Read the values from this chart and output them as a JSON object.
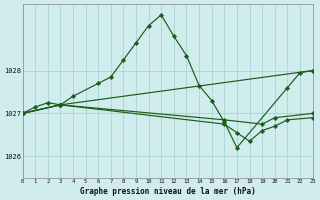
{
  "title": "Graphe pression niveau de la mer (hPa)",
  "bg_color": "#d0ecec",
  "grid_color": "#a8d4d4",
  "line_color": "#1a5c1a",
  "xlim": [
    0,
    23
  ],
  "ylim": [
    1025.5,
    1029.55
  ],
  "yticks": [
    1026,
    1027,
    1028
  ],
  "xticks": [
    0,
    1,
    2,
    3,
    4,
    5,
    6,
    7,
    8,
    9,
    10,
    11,
    12,
    13,
    14,
    15,
    16,
    17,
    18,
    19,
    20,
    21,
    22,
    23
  ],
  "lines": [
    {
      "x": [
        0,
        1,
        2,
        3,
        4,
        6,
        7,
        8,
        9,
        10,
        11,
        12,
        13,
        14,
        15,
        16,
        17,
        21,
        22,
        23
      ],
      "y": [
        1027.0,
        1027.15,
        1027.25,
        1027.2,
        1027.4,
        1027.7,
        1027.85,
        1028.25,
        1028.65,
        1029.05,
        1029.3,
        1028.8,
        1028.35,
        1027.65,
        1027.3,
        1026.8,
        1026.2,
        1027.6,
        1027.95,
        1028.0
      ]
    },
    {
      "x": [
        0,
        3,
        23
      ],
      "y": [
        1027.0,
        1027.2,
        1028.0
      ]
    },
    {
      "x": [
        0,
        3,
        16,
        19,
        20,
        23
      ],
      "y": [
        1027.0,
        1027.2,
        1026.85,
        1026.75,
        1026.9,
        1027.0
      ]
    },
    {
      "x": [
        0,
        3,
        16,
        17,
        18,
        19,
        20,
        21,
        23
      ],
      "y": [
        1027.0,
        1027.2,
        1026.75,
        1026.55,
        1026.35,
        1026.6,
        1026.7,
        1026.85,
        1026.9
      ]
    }
  ]
}
